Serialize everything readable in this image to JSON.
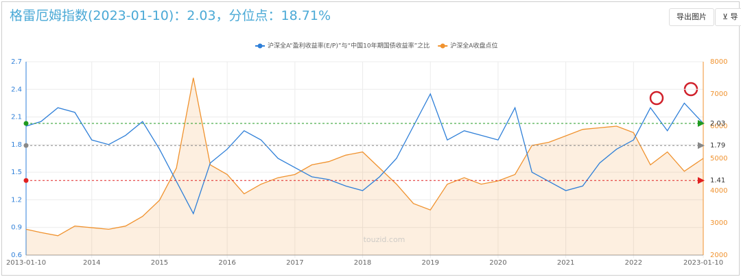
{
  "header": {
    "title": "格雷厄姆指数(2023-01-10)：2.03，分位点：18.71%",
    "buttons": [
      "导出图片",
      "⊻ 导"
    ]
  },
  "watermark": "touzid.com",
  "chart_data": {
    "type": "line",
    "x": [
      2013.03,
      2013.25,
      2013.5,
      2013.75,
      2014,
      2014.25,
      2014.5,
      2014.75,
      2015,
      2015.25,
      2015.5,
      2015.75,
      2016,
      2016.25,
      2016.5,
      2016.75,
      2017,
      2017.25,
      2017.5,
      2017.75,
      2018,
      2018.25,
      2018.5,
      2018.75,
      2019,
      2019.25,
      2019.5,
      2019.75,
      2020,
      2020.25,
      2020.5,
      2020.75,
      2021,
      2021.25,
      2021.5,
      2021.75,
      2022,
      2022.25,
      2022.5,
      2022.75,
      2023.03
    ],
    "series": [
      {
        "name": "沪深全A“盈利收益率(E/P)”与“中国10年期国债收益率”之比",
        "color": "#2e7fd8",
        "values": [
          2.0,
          2.05,
          2.2,
          2.15,
          1.85,
          1.8,
          1.9,
          2.05,
          1.75,
          1.4,
          1.05,
          1.6,
          1.75,
          1.95,
          1.85,
          1.65,
          1.55,
          1.45,
          1.42,
          1.35,
          1.3,
          1.45,
          1.65,
          2.0,
          2.35,
          1.85,
          1.95,
          1.9,
          1.85,
          2.2,
          1.5,
          1.4,
          1.3,
          1.35,
          1.6,
          1.75,
          1.85,
          2.2,
          1.95,
          2.25,
          2.03
        ]
      },
      {
        "name": "沪深全A收盘点位",
        "color": "#f0922e",
        "axis": "y2",
        "values": [
          2800,
          2700,
          2600,
          2900,
          2850,
          2800,
          2900,
          3200,
          3700,
          4700,
          7500,
          4800,
          4500,
          3900,
          4200,
          4400,
          4500,
          4800,
          4900,
          5100,
          5200,
          4700,
          4200,
          3600,
          3400,
          4200,
          4400,
          4200,
          4300,
          4500,
          5400,
          5500,
          5700,
          5900,
          5950,
          6000,
          5800,
          4800,
          5200,
          4600,
          5000
        ]
      }
    ],
    "reference_lines": [
      {
        "value": 2.03,
        "color": "#1f9a1f"
      },
      {
        "value": 1.79,
        "color": "#888888"
      },
      {
        "value": 1.41,
        "color": "#e02020"
      }
    ],
    "xlim": [
      2013.03,
      2023.03
    ],
    "xticks": [
      {
        "value": 2013.03,
        "label": "2013-01-10"
      },
      2014,
      2015,
      2016,
      2017,
      2018,
      2019,
      2020,
      2021,
      2022,
      {
        "value": 2023.03,
        "label": "2023-01-10"
      }
    ],
    "ylim": [
      0.6,
      2.7
    ],
    "yticks": [
      0.6,
      0.9,
      1.2,
      1.5,
      1.8,
      2.1,
      2.4,
      2.7
    ],
    "y2lim": [
      2000,
      8000
    ],
    "y2ticks": [
      2000,
      3000,
      4000,
      5000,
      6000,
      7000,
      8000
    ],
    "grid": true
  }
}
